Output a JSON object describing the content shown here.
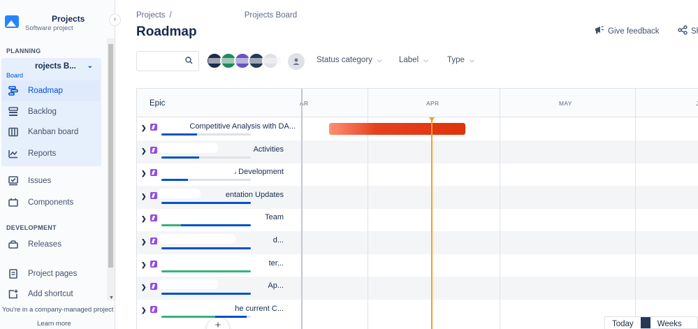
{
  "sidebar": {
    "project_name": "Projects",
    "project_type": "Software project",
    "planning_heading": "PLANNING",
    "board_name": "rojects B...",
    "board_sub": "Board",
    "nav_planning": [
      {
        "label": "Roadmap",
        "icon": "roadmap-icon",
        "active": true
      },
      {
        "label": "Backlog",
        "icon": "backlog-icon"
      },
      {
        "label": "Kanban board",
        "icon": "kanban-board-icon"
      },
      {
        "label": "Reports",
        "icon": "reports-icon"
      }
    ],
    "nav_other": [
      {
        "label": "Issues",
        "icon": "issues-icon"
      },
      {
        "label": "Components",
        "icon": "components-icon"
      }
    ],
    "development_heading": "DEVELOPMENT",
    "nav_development": [
      {
        "label": "Releases",
        "icon": "releases-icon"
      }
    ],
    "nav_bottom": [
      {
        "label": "Project pages",
        "icon": "project-pages-icon"
      },
      {
        "label": "Add shortcut",
        "icon": "add-shortcut-icon"
      }
    ],
    "company_note": "You're in a company-managed project",
    "learn_more": "Learn more"
  },
  "breadcrumb": {
    "root": "Projects",
    "separator": "/",
    "current": "Projects Board"
  },
  "page_title": "Roadmap",
  "header_actions": {
    "feedback": "Give feedback",
    "share": "Sh"
  },
  "filters": {
    "status_category": "Status category",
    "label": "Label",
    "type": "Type"
  },
  "timeline": {
    "epic_header": "Epic",
    "months": [
      "AR",
      "APR",
      "MAY",
      "J"
    ]
  },
  "epics": [
    {
      "label": "Competitive Analysis with DA...",
      "progress_blue": 0.4,
      "progress_green": 0.0
    },
    {
      "label": "Activities",
      "progress_blue": 0.42,
      "progress_green": 0.0
    },
    {
      "label": "Tools Development",
      "progress_blue": 0.3,
      "progress_green": 0.0
    },
    {
      "label": "entation Updates",
      "progress_blue": 1.0,
      "progress_green": 0.0
    },
    {
      "label": "Team",
      "progress_blue": 0.78,
      "progress_green": 0.22
    },
    {
      "label": "d...",
      "progress_blue": 1.0,
      "progress_green": 0.0
    },
    {
      "label": "ter...",
      "progress_blue": 0.0,
      "progress_green": 1.0
    },
    {
      "label": "Ap...",
      "progress_blue": 1.0,
      "progress_green": 0.0
    },
    {
      "label": "to the current C...",
      "progress_blue": 0.35,
      "progress_green": 0.6
    }
  ],
  "zoom": {
    "today": "Today",
    "weeks": "Weeks"
  },
  "colors": {
    "accent": "#0052cc",
    "progress_blue": "#0052cc",
    "progress_green": "#36b37e",
    "epic_purple": "#904ee2",
    "today_line": "#ff991f",
    "bar_red": "#de350b"
  }
}
